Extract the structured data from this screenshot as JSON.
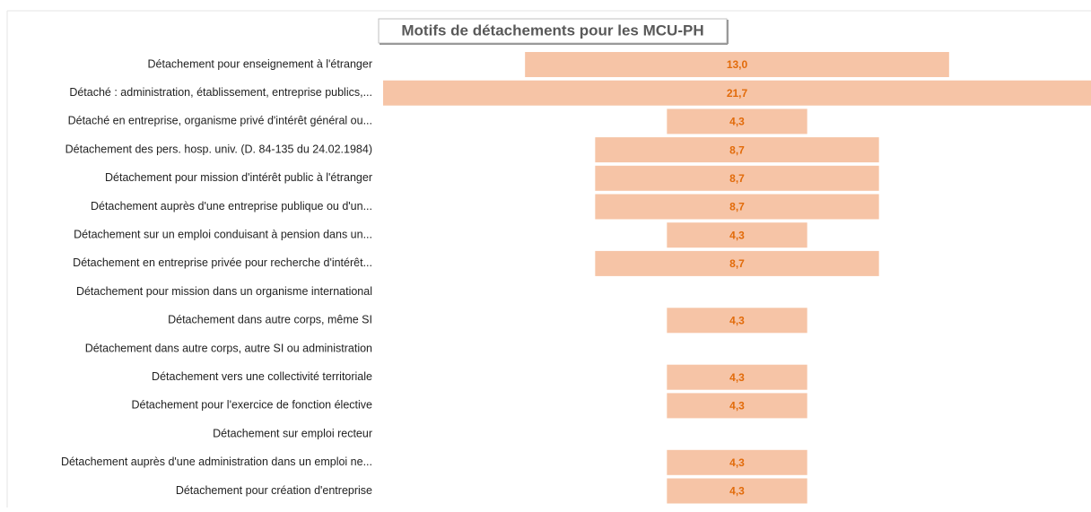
{
  "chart_data": {
    "type": "bar",
    "orientation": "horizontal",
    "align": "center",
    "title": "Motifs de détachements pour les MCU-PH",
    "categories": [
      "Détachement pour enseignement à  l'étranger",
      "Détaché : administration, établissement, entreprise publics,...",
      "Détaché en entreprise, organisme privé d'intérêt général ou...",
      "Détachement des pers. hosp. univ. (D. 84-135 du 24.02.1984)",
      "Détachement pour mission d'intérêt public à  l'étranger",
      "Détachement auprès d'une entreprise publique ou d'un...",
      "Détachement sur un emploi conduisant à  pension dans un...",
      "Détachement en entreprise privée pour recherche d'intérêt...",
      "Détachement pour mission dans un organisme international",
      "Détachement dans autre corps, même SI",
      "Détachement dans autre corps, autre SI ou administration",
      "Détachement vers une collectivité territoriale",
      "Détachement pour l'exercice de fonction élective",
      "Détachement sur emploi recteur",
      "Détachement auprès d'une administration dans un emploi ne...",
      "Détachement pour création d'entreprise"
    ],
    "values": [
      13.0,
      21.7,
      4.3,
      8.7,
      8.7,
      8.7,
      4.3,
      8.7,
      null,
      4.3,
      null,
      4.3,
      4.3,
      null,
      4.3,
      4.3
    ],
    "value_labels": [
      "13,0",
      "21,7",
      "4,3",
      "8,7",
      "8,7",
      "8,7",
      "4,3",
      "8,7",
      null,
      "4,3",
      null,
      "4,3",
      "4,3",
      null,
      "4,3",
      "4,3"
    ],
    "color": "#f6c4a6",
    "label_color": "#e26b0a"
  }
}
